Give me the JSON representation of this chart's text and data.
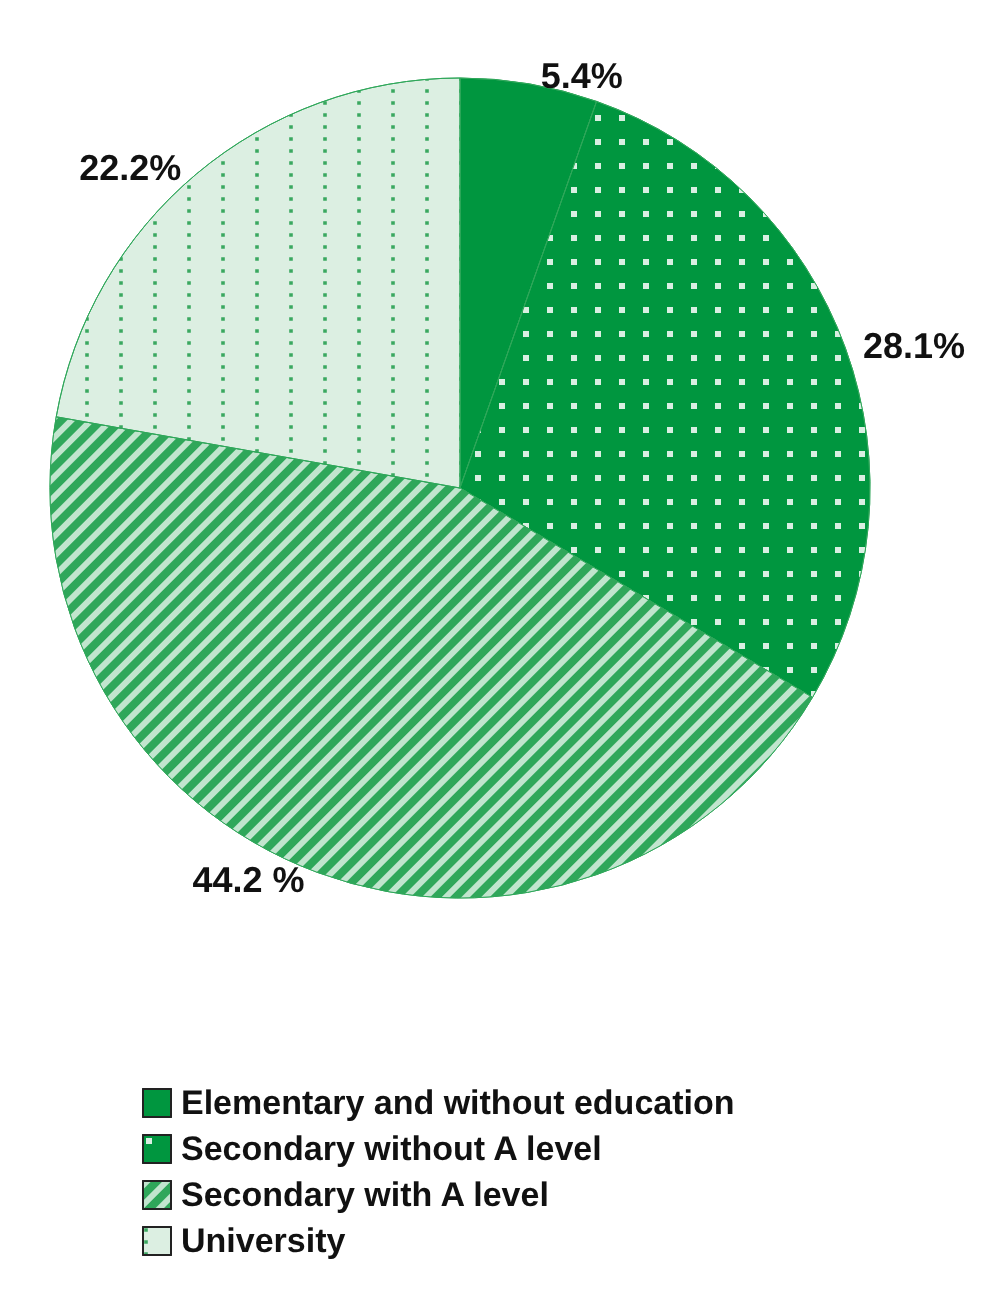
{
  "chart_data": {
    "type": "pie",
    "categories": [
      "Elementary and without education",
      "Secondary without A level",
      "Secondary with A level",
      "University"
    ],
    "values": [
      5.4,
      28.1,
      44.2,
      22.2
    ],
    "value_labels": [
      "5.4%",
      "28.1%",
      "44.2 %",
      "22.2%"
    ],
    "colors": [
      "#00963f",
      "#00963f",
      "#2fa75a",
      "#dcefe2"
    ],
    "legend": "bottom left"
  }
}
